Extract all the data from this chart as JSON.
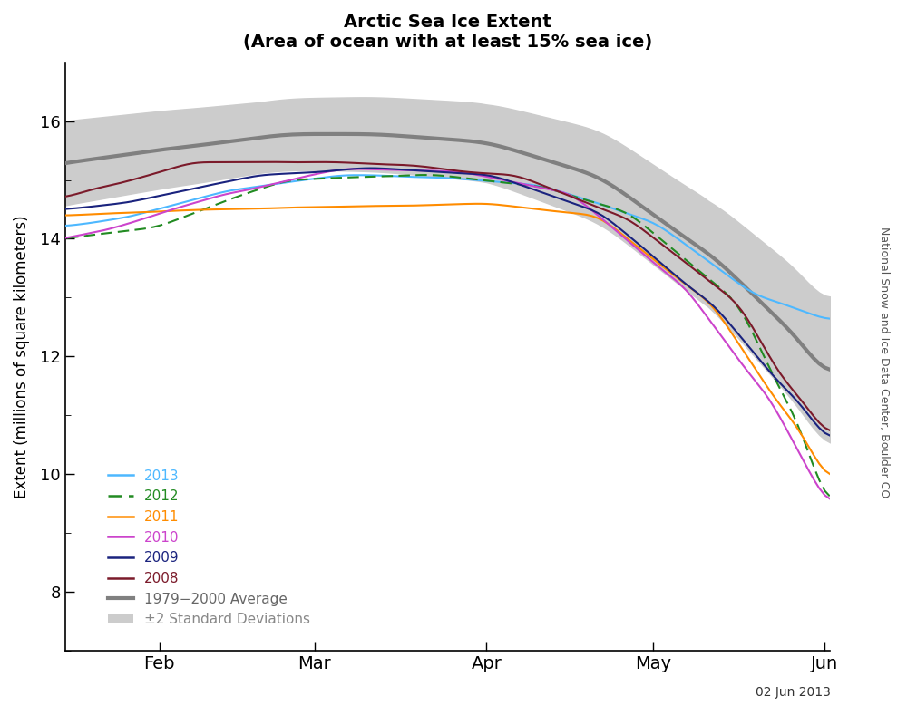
{
  "title": "Arctic Sea Ice Extent",
  "subtitle": "(Area of ocean with at least 15% sea ice)",
  "ylabel": "Extent (millions of square kilometers)",
  "date_label": "02 Jun 2013",
  "watermark": "National Snow and Ice Data Center, Boulder CO",
  "ylim": [
    7.0,
    17.0
  ],
  "yticks": [
    8,
    10,
    12,
    14,
    16
  ],
  "colors": {
    "2013": "#4DB8FF",
    "2012": "#228B22",
    "2011": "#FF8C00",
    "2010": "#CC44CC",
    "2009": "#1A237E",
    "2008": "#7B1A2A",
    "avg": "#808080",
    "std_fill": "#CCCCCC"
  },
  "background_color": "#FFFFFF"
}
